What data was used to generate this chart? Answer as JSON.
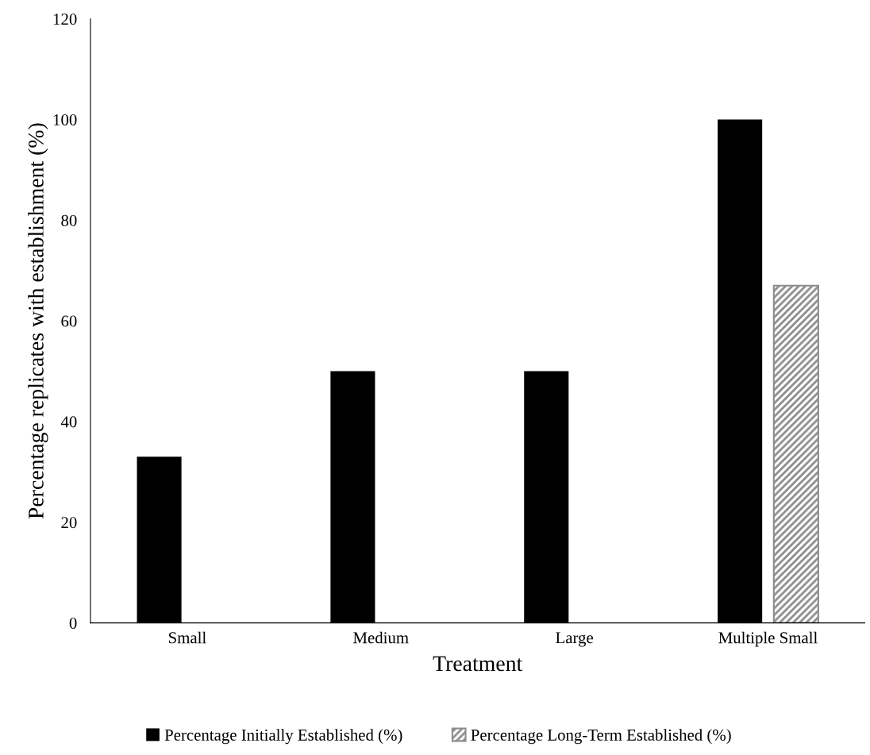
{
  "chart_data": {
    "type": "bar",
    "xlabel": "Treatment",
    "ylabel": "Percentage replicates with establishment (%)",
    "categories": [
      "Small",
      "Medium",
      "Large",
      "Multiple Small"
    ],
    "series": [
      {
        "name": "Percentage Initially Established (%)",
        "color": "#000000",
        "values": [
          33,
          50,
          50,
          100
        ]
      },
      {
        "name": "Percentage Long-Term Established (%)",
        "color": "#8c8c8c",
        "values": [
          null,
          null,
          null,
          67
        ]
      }
    ],
    "ylim": [
      0,
      120
    ],
    "yticks": [
      0,
      20,
      40,
      60,
      80,
      100,
      120
    ],
    "grid": false,
    "legend": "bottom"
  }
}
